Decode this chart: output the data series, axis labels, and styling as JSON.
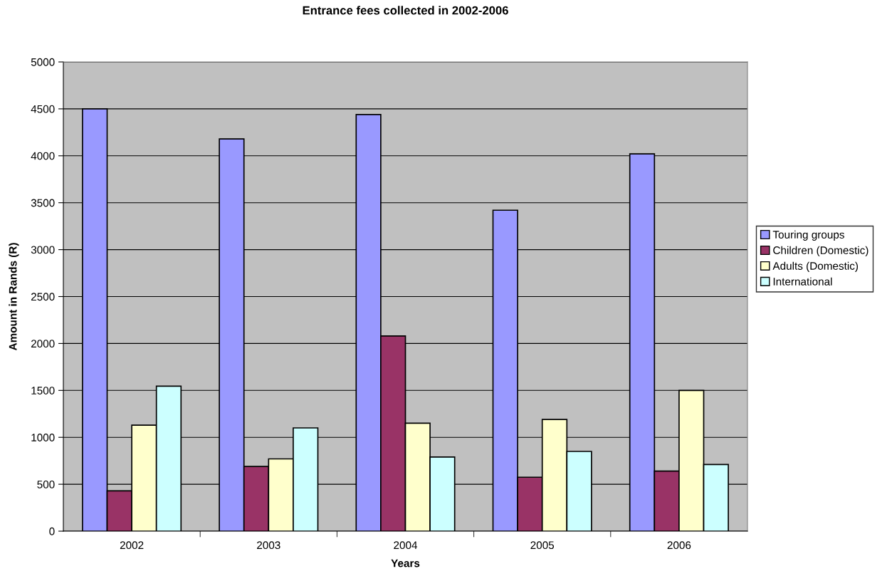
{
  "chart_data": {
    "type": "bar",
    "title": "Entrance fees collected in 2002-2006",
    "xlabel": "Years",
    "ylabel": "Amount in Rands (R)",
    "categories": [
      "2002",
      "2003",
      "2004",
      "2005",
      "2006"
    ],
    "series": [
      {
        "name": "Touring groups",
        "color": "#9999ff",
        "values": [
          4500,
          4180,
          4440,
          3420,
          4020
        ]
      },
      {
        "name": "Children (Domestic)",
        "color": "#993366",
        "values": [
          430,
          690,
          2080,
          575,
          640
        ]
      },
      {
        "name": "Adults (Domestic)",
        "color": "#ffffcc",
        "values": [
          1130,
          770,
          1150,
          1190,
          1500
        ]
      },
      {
        "name": "International",
        "color": "#ccffff",
        "values": [
          1545,
          1100,
          790,
          850,
          710
        ]
      }
    ],
    "ylim": [
      0,
      5000
    ],
    "yticks": [
      0,
      500,
      1000,
      1500,
      2000,
      2500,
      3000,
      3500,
      4000,
      4500,
      5000
    ],
    "grid": "y",
    "legend": "right"
  }
}
